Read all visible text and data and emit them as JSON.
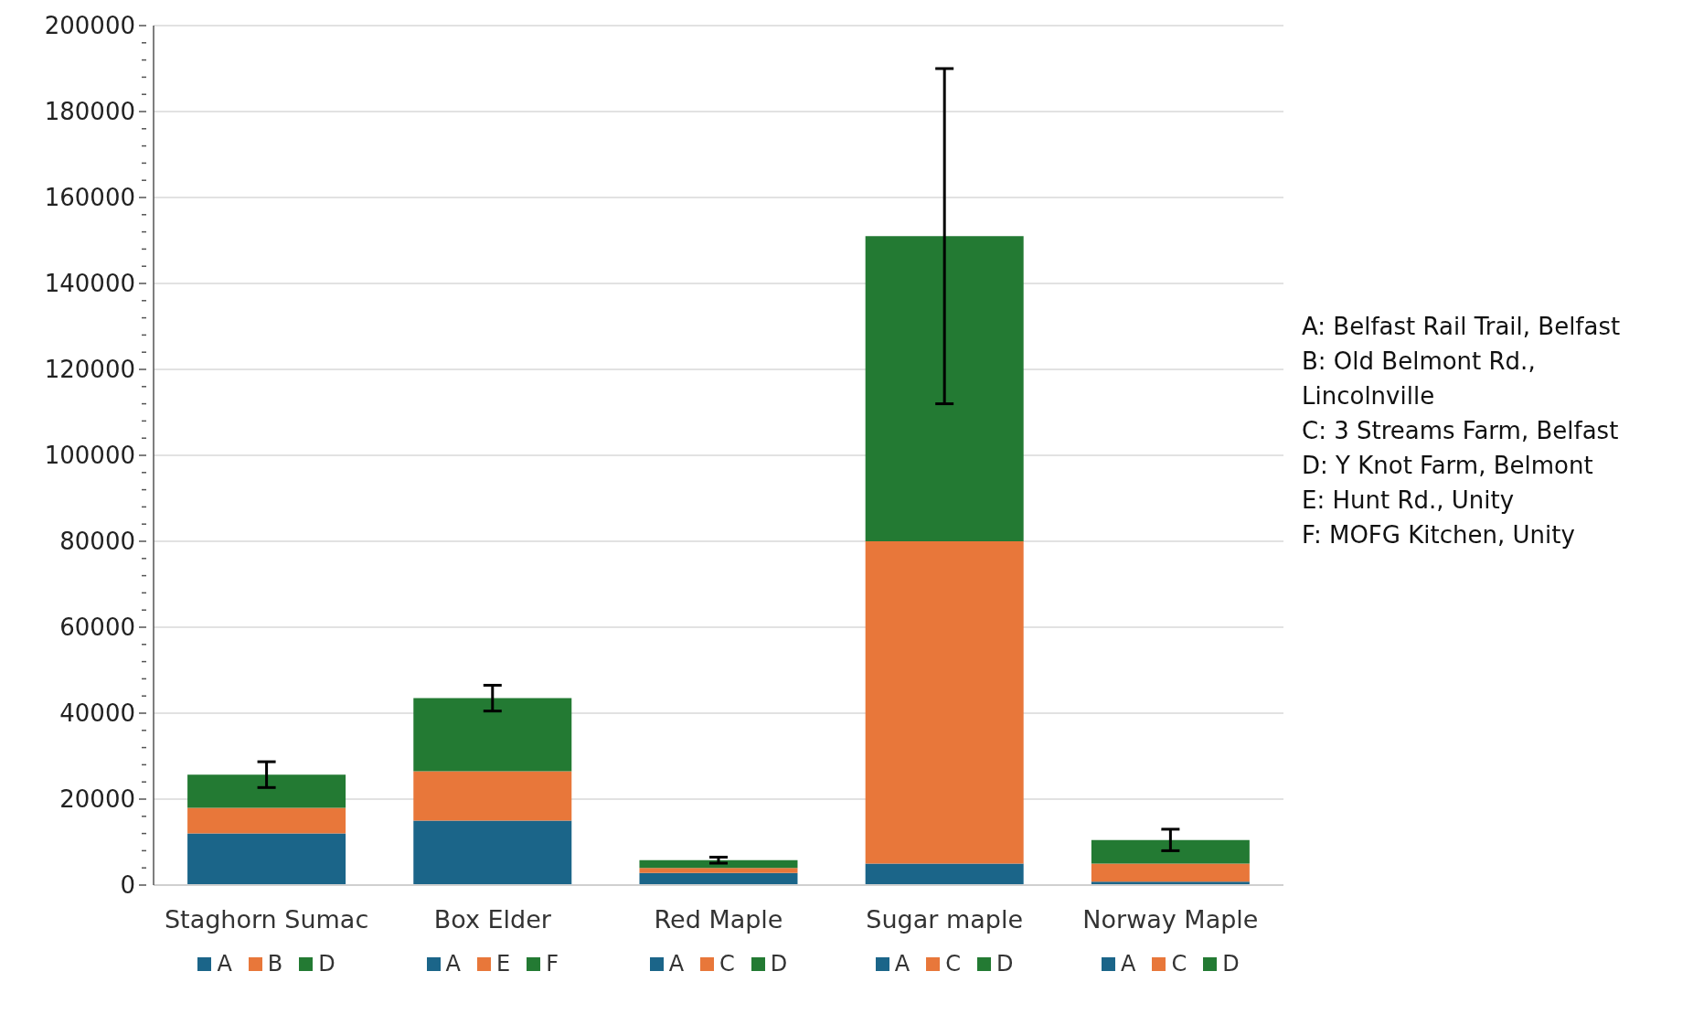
{
  "chart_data": {
    "type": "bar",
    "stacked": true,
    "categories": [
      "Staghorn Sumac",
      "Box Elder",
      "Red Maple",
      "Sugar maple",
      "Norway Maple"
    ],
    "series": [
      {
        "color": "#1b6589",
        "values": [
          12000,
          15000,
          2800,
          5000,
          800
        ]
      },
      {
        "color": "#e8773a",
        "values": [
          6000,
          11500,
          1200,
          75000,
          4200
        ]
      },
      {
        "color": "#237a33",
        "values": [
          7700,
          17000,
          1800,
          71000,
          5500
        ],
        "errors": [
          3000,
          3000,
          700,
          39000,
          2500
        ]
      }
    ],
    "ylim": [
      0,
      200000
    ],
    "yticks": [
      0,
      {
        "value": 4000,
        "label": null
      },
      {
        "value": 8000,
        "label": null
      },
      {
        "value": 12000,
        "label": null
      },
      {
        "value": 16000,
        "label": null
      },
      20000,
      {
        "value": 24000,
        "label": null
      },
      {
        "value": 28000,
        "label": null
      },
      {
        "value": 32000,
        "label": null
      },
      {
        "value": 36000,
        "label": null
      },
      40000,
      {
        "value": 44000,
        "label": null
      },
      {
        "value": 48000,
        "label": null
      },
      {
        "value": 52000,
        "label": null
      },
      {
        "value": 56000,
        "label": null
      },
      60000,
      {
        "value": 64000,
        "label": null
      },
      {
        "value": 68000,
        "label": null
      },
      {
        "value": 72000,
        "label": null
      },
      {
        "value": 76000,
        "label": null
      },
      80000,
      {
        "value": 84000,
        "label": null
      },
      {
        "value": 88000,
        "label": null
      },
      {
        "value": 92000,
        "label": null
      },
      {
        "value": 96000,
        "label": null
      },
      100000,
      {
        "value": 104000,
        "label": null
      },
      {
        "value": 108000,
        "label": null
      },
      {
        "value": 112000,
        "label": null
      },
      {
        "value": 116000,
        "label": null
      },
      120000,
      {
        "value": 124000,
        "label": null
      },
      {
        "value": 128000,
        "label": null
      },
      {
        "value": 132000,
        "label": null
      },
      {
        "value": 136000,
        "label": null
      },
      140000,
      {
        "value": 144000,
        "label": null
      },
      {
        "value": 148000,
        "label": null
      },
      {
        "value": 152000,
        "label": null
      },
      {
        "value": 156000,
        "label": null
      },
      160000,
      {
        "value": 164000,
        "label": null
      },
      {
        "value": 168000,
        "label": null
      },
      {
        "value": 172000,
        "label": null
      },
      {
        "value": 176000,
        "label": null
      },
      180000,
      {
        "value": 184000,
        "label": null
      },
      {
        "value": 188000,
        "label": null
      },
      {
        "value": 192000,
        "label": null
      },
      {
        "value": 196000,
        "label": null
      },
      200000
    ],
    "grid": "y",
    "annotations": [
      "A: Belfast Rail Trail, Belfast",
      "B: Old Belmont Rd., Lincolnville",
      "C: 3 Streams Farm, Belfast",
      "D: Y Knot Farm, Belmont",
      "E: Hunt Rd., Unity",
      "F: MOFG Kitchen, Unity",
      "A",
      "B",
      "D",
      "A",
      "E",
      "F",
      "A",
      "C",
      "D",
      "A",
      "C",
      "D",
      "A",
      "C",
      "D"
    ]
  }
}
